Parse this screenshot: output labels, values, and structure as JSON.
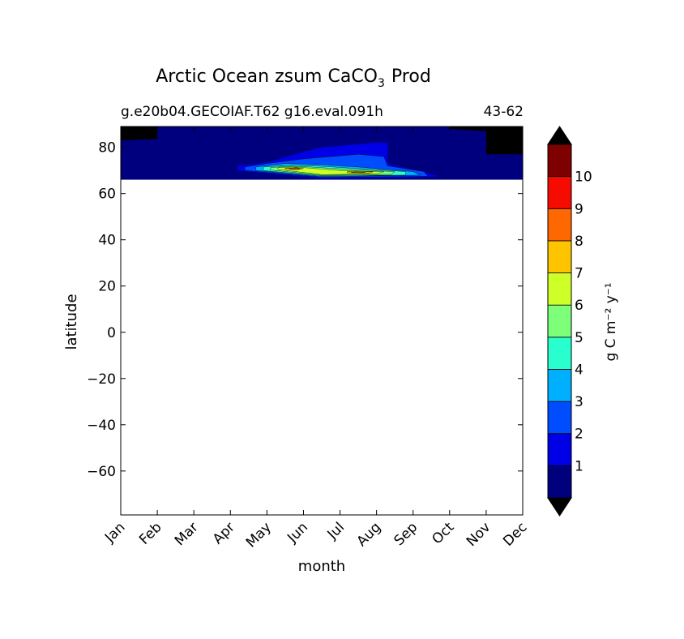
{
  "chart_data": {
    "type": "heatmap",
    "title": "Arctic Ocean zsum CaCO",
    "title_subscript": "3",
    "title_suffix": "Prod",
    "subtitle_left": "g.e20b04.GECOIAF.T62 g16.eval.091h",
    "subtitle_right": "43-62",
    "xlabel": "month",
    "ylabel": "latitude",
    "x_categories": [
      "Jan",
      "Feb",
      "Mar",
      "Apr",
      "May",
      "Jun",
      "Jul",
      "Aug",
      "Sep",
      "Oct",
      "Nov",
      "Dec"
    ],
    "xlim": [
      0,
      11
    ],
    "ylim": [
      -79,
      89
    ],
    "yticks": [
      80,
      60,
      40,
      20,
      0,
      -20,
      -40,
      -60
    ],
    "ytick_labels": [
      "80",
      "60",
      "40",
      "20",
      "0",
      "−20",
      "−40",
      "−60"
    ],
    "data_lat_range": [
      66,
      89
    ],
    "colorbar": {
      "label": "g C m⁻² y⁻¹",
      "extend": "both",
      "ticks": [
        "1",
        "2",
        "3",
        "4",
        "5",
        "6",
        "7",
        "8",
        "9",
        "10"
      ],
      "colors": [
        "#00007f",
        "#0000e6",
        "#004cff",
        "#00b0ff",
        "#29ffce",
        "#7dff7a",
        "#ceff29",
        "#ffc400",
        "#ff6800",
        "#f50b00",
        "#7f0000"
      ],
      "under_color": "#000000",
      "over_color": "#000000"
    },
    "features": [
      {
        "name": "no-data",
        "color": "#000000",
        "poly": [
          [
            0,
            89
          ],
          [
            1,
            89
          ],
          [
            1,
            83.6
          ],
          [
            0,
            83
          ]
        ]
      },
      {
        "name": "no-data",
        "color": "#000000",
        "poly": [
          [
            9,
            89
          ],
          [
            11,
            89
          ],
          [
            11,
            77
          ],
          [
            10,
            77
          ],
          [
            10,
            87
          ],
          [
            9,
            88
          ]
        ]
      },
      {
        "name": "level-1",
        "color": "#0000e6",
        "poly": [
          [
            3.2,
            72
          ],
          [
            4,
            73.5
          ],
          [
            5,
            78
          ],
          [
            5.5,
            80
          ],
          [
            7,
            82
          ],
          [
            7.3,
            82
          ],
          [
            7.3,
            73
          ],
          [
            8.2,
            69.5
          ],
          [
            8.7,
            67.5
          ],
          [
            8.2,
            67
          ],
          [
            5.5,
            66.5
          ],
          [
            3.2,
            70
          ]
        ]
      },
      {
        "name": "level-2",
        "color": "#004cff",
        "poly": [
          [
            3.4,
            71.5
          ],
          [
            4,
            73
          ],
          [
            5,
            75
          ],
          [
            6.5,
            77
          ],
          [
            7.2,
            76
          ],
          [
            7.3,
            72
          ],
          [
            8.3,
            69.5
          ],
          [
            8.4,
            67.5
          ],
          [
            5.5,
            67
          ],
          [
            3.4,
            70
          ]
        ]
      },
      {
        "name": "level-3",
        "color": "#00b0ff",
        "poly": [
          [
            3.7,
            71.5
          ],
          [
            4.5,
            73
          ],
          [
            5.5,
            72.5
          ],
          [
            6.5,
            71.5
          ],
          [
            8,
            69.5
          ],
          [
            8.2,
            68
          ],
          [
            5.5,
            67.3
          ],
          [
            3.7,
            70
          ]
        ]
      },
      {
        "name": "level-4",
        "color": "#29ffce",
        "poly": [
          [
            3.9,
            71.5
          ],
          [
            4.7,
            72.2
          ],
          [
            5.5,
            71.8
          ],
          [
            6.5,
            70.8
          ],
          [
            7.8,
            69.5
          ],
          [
            7.8,
            68
          ],
          [
            5.5,
            67.6
          ],
          [
            3.9,
            70
          ]
        ]
      },
      {
        "name": "level-5",
        "color": "#7dff7a",
        "poly": [
          [
            4.1,
            71.3
          ],
          [
            4.7,
            71.8
          ],
          [
            5.3,
            71.4
          ],
          [
            6.3,
            70.4
          ],
          [
            7.5,
            69.5
          ],
          [
            7.4,
            68.3
          ],
          [
            5.5,
            67.9
          ],
          [
            4.1,
            70.2
          ]
        ]
      },
      {
        "name": "level-6",
        "color": "#ceff29",
        "poly": [
          [
            4.3,
            71.2
          ],
          [
            4.7,
            71.5
          ],
          [
            5.1,
            71.1
          ],
          [
            6,
            70
          ],
          [
            7.2,
            69.5
          ],
          [
            7,
            68.5
          ],
          [
            5.5,
            68.2
          ],
          [
            4.3,
            70.4
          ]
        ]
      },
      {
        "name": "level-7",
        "color": "#ffc400",
        "poly": [
          [
            4.5,
            71
          ],
          [
            4.8,
            71.2
          ],
          [
            5,
            70.8
          ],
          [
            4.8,
            70.3
          ],
          [
            4.5,
            70.5
          ]
        ]
      },
      {
        "name": "level-7",
        "color": "#ffc400",
        "poly": [
          [
            6.2,
            69.6
          ],
          [
            6.9,
            69.4
          ],
          [
            6.8,
            68.8
          ],
          [
            6.2,
            69
          ]
        ]
      },
      {
        "name": "level-8",
        "color": "#ff6800",
        "poly": [
          [
            4.6,
            70.9
          ],
          [
            4.8,
            71
          ],
          [
            4.9,
            70.7
          ],
          [
            4.7,
            70.5
          ]
        ]
      },
      {
        "name": "level-8",
        "color": "#ff6800",
        "poly": [
          [
            6.4,
            69.4
          ],
          [
            6.7,
            69.3
          ],
          [
            6.6,
            69
          ],
          [
            6.3,
            69.1
          ]
        ]
      }
    ]
  }
}
